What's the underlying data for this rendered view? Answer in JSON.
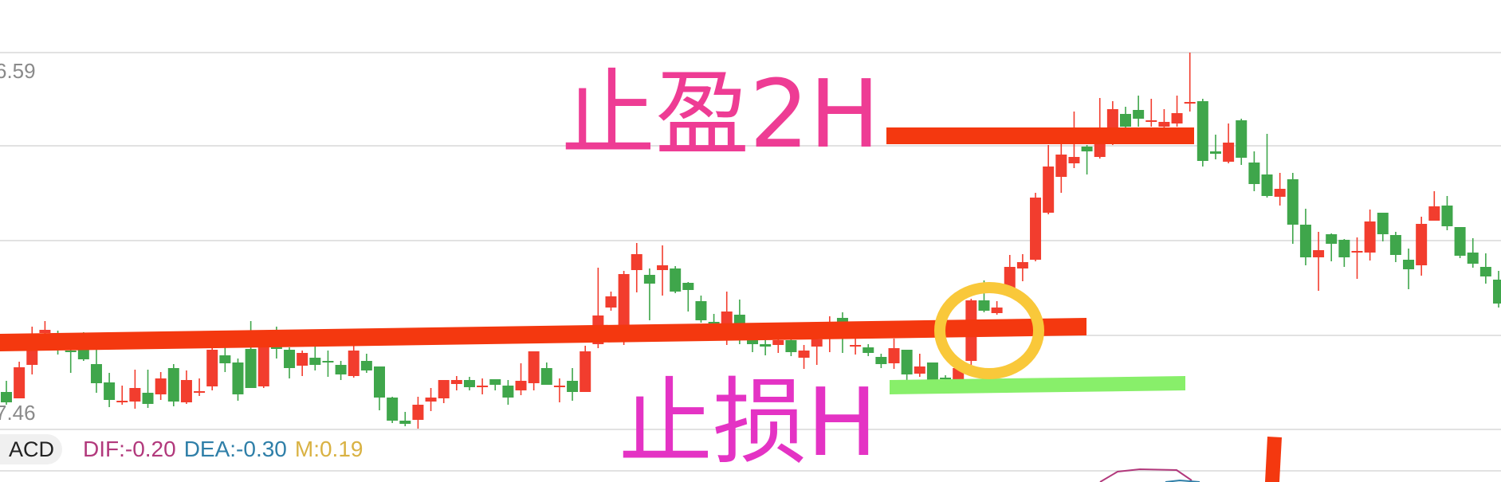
{
  "colors": {
    "up": "#f23d2e",
    "down": "#3fa64b",
    "grid": "#e2e2e2",
    "take_profit_line": "#f4380f",
    "entry_line": "#f4380f",
    "stop_loss_line": "#88ef6a",
    "circle": "#f9c83a",
    "take_profit_text": "#ee3c94",
    "stop_loss_text": "#e433c4",
    "dif": "#b2397c",
    "dea": "#2f7fa8",
    "m": "#d9b243"
  },
  "axis": {
    "top_label": "6.59",
    "bottom_label": "7.46"
  },
  "annotations": {
    "take_profit": "止盈2H",
    "stop_loss": "止损H"
  },
  "macd": {
    "button_label": "ACD",
    "dif": "DIF:-0.20",
    "dea": "DEA:-0.30",
    "m": "M:0.19"
  },
  "chart_data": {
    "type": "candlestick",
    "title": "",
    "grid": true,
    "ylim": [
      0,
      474
    ],
    "columns": [
      "open",
      "high",
      "low",
      "close"
    ],
    "ohlc": [
      [
        48,
        62,
        32,
        35
      ],
      [
        40,
        86,
        40,
        79
      ],
      [
        82,
        130,
        70,
        101
      ],
      [
        122,
        137,
        118,
        126
      ],
      [
        118,
        125,
        95,
        112
      ],
      [
        100,
        122,
        72,
        98
      ],
      [
        101,
        123,
        87,
        89
      ],
      [
        83,
        102,
        47,
        59
      ],
      [
        60,
        72,
        29,
        38
      ],
      [
        36,
        56,
        32,
        37
      ],
      [
        36,
        76,
        27,
        53
      ],
      [
        47,
        76,
        28,
        33
      ],
      [
        45,
        73,
        38,
        65
      ],
      [
        78,
        83,
        30,
        36
      ],
      [
        35,
        75,
        33,
        63
      ],
      [
        48,
        65,
        43,
        49
      ],
      [
        55,
        105,
        50,
        101
      ],
      [
        94,
        114,
        73,
        84
      ],
      [
        85,
        90,
        37,
        45
      ],
      [
        102,
        137,
        53,
        53
      ],
      [
        55,
        110,
        53,
        105
      ],
      [
        105,
        130,
        90,
        102
      ],
      [
        101,
        104,
        65,
        78
      ],
      [
        81,
        100,
        68,
        97
      ],
      [
        91,
        110,
        75,
        82
      ],
      [
        87,
        100,
        67,
        86
      ],
      [
        82,
        87,
        63,
        70
      ],
      [
        68,
        107,
        66,
        100
      ],
      [
        87,
        96,
        72,
        75
      ],
      [
        80,
        80,
        25,
        41
      ],
      [
        41,
        42,
        9,
        12
      ],
      [
        12,
        23,
        5,
        8
      ],
      [
        13,
        42,
        2,
        32
      ],
      [
        36,
        53,
        24,
        41
      ],
      [
        40,
        63,
        34,
        63
      ],
      [
        58,
        68,
        50,
        63
      ],
      [
        63,
        67,
        50,
        54
      ],
      [
        55,
        65,
        45,
        56
      ],
      [
        64,
        64,
        50,
        57
      ],
      [
        56,
        63,
        32,
        41
      ],
      [
        50,
        84,
        44,
        62
      ],
      [
        59,
        99,
        50,
        99
      ],
      [
        78,
        85,
        57,
        57
      ],
      [
        56,
        65,
        35,
        56
      ],
      [
        62,
        78,
        37,
        48
      ],
      [
        48,
        106,
        48,
        99
      ],
      [
        108,
        204,
        103,
        144
      ],
      [
        154,
        174,
        150,
        168
      ],
      [
        132,
        200,
        107,
        196
      ],
      [
        201,
        235,
        173,
        221
      ],
      [
        195,
        203,
        138,
        184
      ],
      [
        201,
        232,
        169,
        207
      ],
      [
        203,
        206,
        172,
        174
      ],
      [
        185,
        186,
        149,
        176
      ],
      [
        162,
        169,
        135,
        138
      ],
      [
        136,
        146,
        125,
        133
      ],
      [
        133,
        174,
        107,
        149
      ],
      [
        145,
        164,
        108,
        133
      ],
      [
        113,
        120,
        98,
        108
      ],
      [
        108,
        113,
        94,
        105
      ],
      [
        107,
        115,
        97,
        113
      ],
      [
        113,
        115,
        93,
        98
      ],
      [
        91,
        107,
        77,
        100
      ],
      [
        105,
        116,
        82,
        114
      ],
      [
        120,
        143,
        98,
        121
      ],
      [
        141,
        148,
        97,
        136
      ],
      [
        107,
        115,
        95,
        107
      ],
      [
        104,
        108,
        93,
        97
      ],
      [
        92,
        96,
        78,
        83
      ],
      [
        84,
        115,
        77,
        103
      ],
      [
        101,
        101,
        61,
        70
      ],
      [
        71,
        96,
        67,
        80
      ],
      [
        85,
        85,
        62,
        62
      ],
      [
        66,
        69,
        62,
        64
      ],
      [
        63,
        84,
        63,
        78
      ],
      [
        87,
        165,
        82,
        163
      ],
      [
        163,
        188,
        148,
        150
      ],
      [
        147,
        162,
        145,
        154
      ],
      [
        170,
        220,
        168,
        205
      ],
      [
        203,
        221,
        187,
        211
      ],
      [
        214,
        298,
        212,
        292
      ],
      [
        273,
        358,
        271,
        331
      ],
      [
        318,
        359,
        298,
        346
      ],
      [
        335,
        400,
        329,
        343
      ],
      [
        356,
        358,
        321,
        350
      ],
      [
        343,
        417,
        341,
        360
      ],
      [
        360,
        413,
        358,
        403
      ],
      [
        397,
        406,
        378,
        381
      ],
      [
        402,
        420,
        381,
        391
      ],
      [
        389,
        416,
        381,
        389
      ],
      [
        381,
        403,
        378,
        387
      ],
      [
        385,
        420,
        381,
        398
      ],
      [
        412,
        474,
        400,
        412
      ],
      [
        413,
        416,
        331,
        338
      ],
      [
        350,
        371,
        340,
        347
      ],
      [
        337,
        385,
        335,
        361
      ],
      [
        389,
        391,
        333,
        342
      ],
      [
        336,
        350,
        300,
        309
      ],
      [
        321,
        372,
        292,
        294
      ],
      [
        293,
        323,
        282,
        303
      ],
      [
        315,
        323,
        234,
        258
      ],
      [
        258,
        278,
        207,
        217
      ],
      [
        217,
        249,
        175,
        226
      ],
      [
        246,
        247,
        212,
        234
      ],
      [
        239,
        240,
        205,
        217
      ],
      [
        225,
        242,
        190,
        225
      ],
      [
        223,
        277,
        213,
        262
      ],
      [
        273,
        273,
        237,
        246
      ],
      [
        245,
        249,
        211,
        220
      ],
      [
        214,
        228,
        177,
        202
      ],
      [
        207,
        268,
        194,
        259
      ],
      [
        263,
        300,
        263,
        281
      ],
      [
        282,
        294,
        251,
        256
      ],
      [
        255,
        255,
        216,
        219
      ],
      [
        223,
        241,
        204,
        209
      ],
      [
        205,
        222,
        184,
        193
      ],
      [
        189,
        200,
        154,
        159
      ]
    ]
  }
}
